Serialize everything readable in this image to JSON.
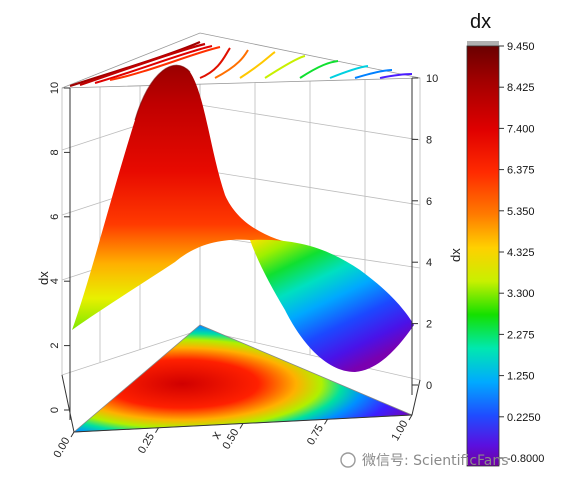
{
  "chart_data": {
    "type": "surface3d",
    "x_axis": {
      "label": "x",
      "ticks": [
        "0.00",
        "0.25",
        "0.50",
        "0.75",
        "1.00"
      ],
      "range": [
        0,
        1
      ]
    },
    "left_axis": {
      "label": "dx",
      "ticks": [
        "0",
        "2",
        "4",
        "6",
        "8",
        "10"
      ],
      "range": [
        0,
        10
      ]
    },
    "right_axis": {
      "label": "dx",
      "ticks": [
        "0",
        "2",
        "4",
        "6",
        "8",
        "10"
      ],
      "range": [
        0,
        10
      ]
    },
    "colorbar": {
      "title": "dx",
      "ticks": [
        "9.450",
        "8.425",
        "7.400",
        "6.375",
        "5.350",
        "4.325",
        "3.300",
        "2.275",
        "1.250",
        "0.2250",
        "-0.8000"
      ],
      "range": [
        -0.8,
        9.45
      ],
      "colormap": [
        "#6a00a8",
        "#3f1bd6",
        "#1a55ff",
        "#00b7ff",
        "#00f0c0",
        "#14e000",
        "#a8f000",
        "#fff200",
        "#ffb000",
        "#ff5a00",
        "#f01010",
        "#c00000",
        "#7a0000"
      ]
    },
    "surface_features": {
      "peak_value": 9.45,
      "min_value": -0.8,
      "contour_projection_top": true,
      "color_projection_bottom": true
    },
    "watermark": "微信号: ScientificFans"
  }
}
